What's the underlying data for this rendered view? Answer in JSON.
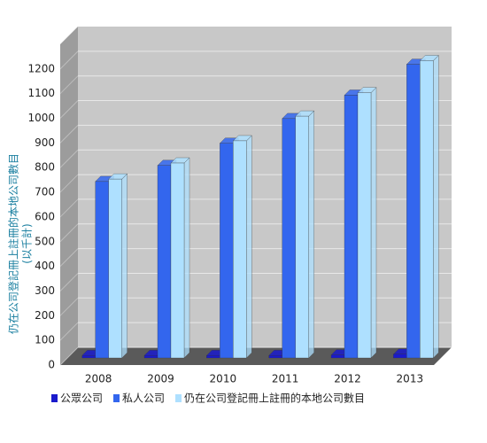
{
  "chart_data": {
    "type": "bar3d",
    "y_label": "仍在公司登記冊上註冊的本地公司數目",
    "y_unit_label": "(以千計)",
    "categories": [
      "2008",
      "2009",
      "2010",
      "2011",
      "2012",
      "2013"
    ],
    "series": [
      {
        "name": "公眾公司",
        "color": "#1a1acc",
        "values": [
          10,
          10,
          10,
          10,
          12,
          15
        ]
      },
      {
        "name": "私人公司",
        "color": "#3366ee",
        "values": [
          715,
          780,
          870,
          970,
          1065,
          1190
        ]
      },
      {
        "name": "仍在公司登記冊上註冊的本地公司數目",
        "color": "#aee0ff",
        "values": [
          725,
          790,
          880,
          980,
          1075,
          1205
        ]
      }
    ],
    "ylim": [
      0,
      1300
    ],
    "yticks": [
      0,
      100,
      200,
      300,
      400,
      500,
      600,
      700,
      800,
      900,
      1000,
      1100,
      1200
    ],
    "grid": true
  }
}
